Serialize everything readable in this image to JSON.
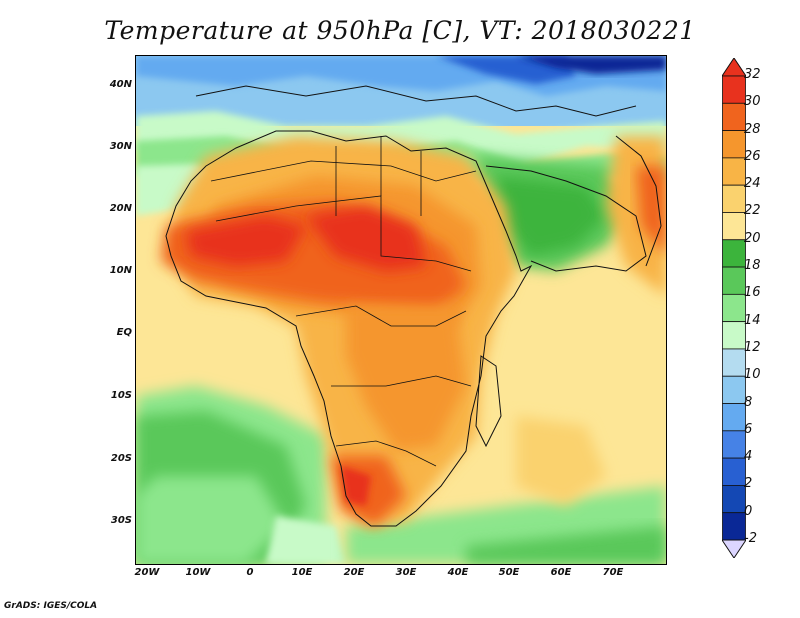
{
  "title": "Temperature at 950hPa [C], VT: 2018030221",
  "credit": "GrADS: IGES/COLA",
  "map": {
    "region": "Africa",
    "variable": "Temperature at 950hPa",
    "units": "C",
    "lat_range": [
      -37,
      45
    ],
    "lon_range": [
      -22,
      80
    ],
    "lat_labels": [
      "40N",
      "30N",
      "20N",
      "10N",
      "EQ",
      "10S",
      "20S",
      "30S"
    ],
    "lon_labels": [
      "20W",
      "10W",
      "0",
      "10E",
      "20E",
      "30E",
      "40E",
      "50E",
      "60E",
      "70E"
    ]
  },
  "colorbar": {
    "levels": [
      "32",
      "30",
      "28",
      "26",
      "24",
      "22",
      "20",
      "18",
      "16",
      "14",
      "12",
      "10",
      "8",
      "6",
      "4",
      "2",
      "0",
      "-2"
    ],
    "colors": [
      "#e8321e",
      "#f0641e",
      "#f5962d",
      "#f8b446",
      "#fad26e",
      "#fde696",
      "#3cb43c",
      "#5ac85a",
      "#8ce68c",
      "#c8fac8",
      "#b4dcf0",
      "#8cc8f0",
      "#64aaf0",
      "#4682e6",
      "#2860d2",
      "#1448b4",
      "#0a2896",
      "#06186e"
    ]
  }
}
